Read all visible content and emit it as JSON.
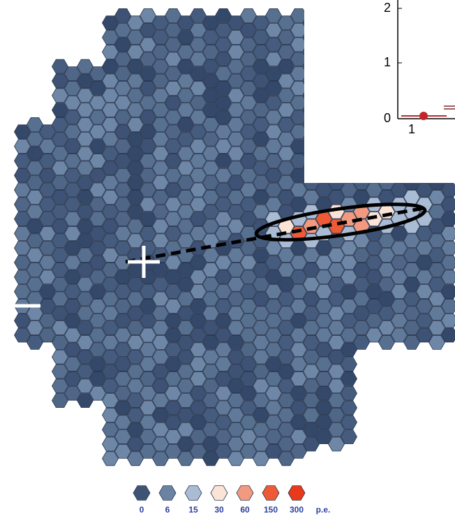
{
  "legend": {
    "levels": [
      {
        "label": "0",
        "color": "#3f5474"
      },
      {
        "label": "6",
        "color": "#6b83a3"
      },
      {
        "label": "15",
        "color": "#a9bcd4"
      },
      {
        "label": "30",
        "color": "#fbe3d6"
      },
      {
        "label": "60",
        "color": "#f29a80"
      },
      {
        "label": "150",
        "color": "#ee5a36"
      },
      {
        "label": "300",
        "color": "#e8391b"
      }
    ],
    "unit": "p.e."
  },
  "inset": {
    "yticks": [
      "2",
      "1",
      "0"
    ],
    "xticks": [
      "1"
    ]
  }
}
